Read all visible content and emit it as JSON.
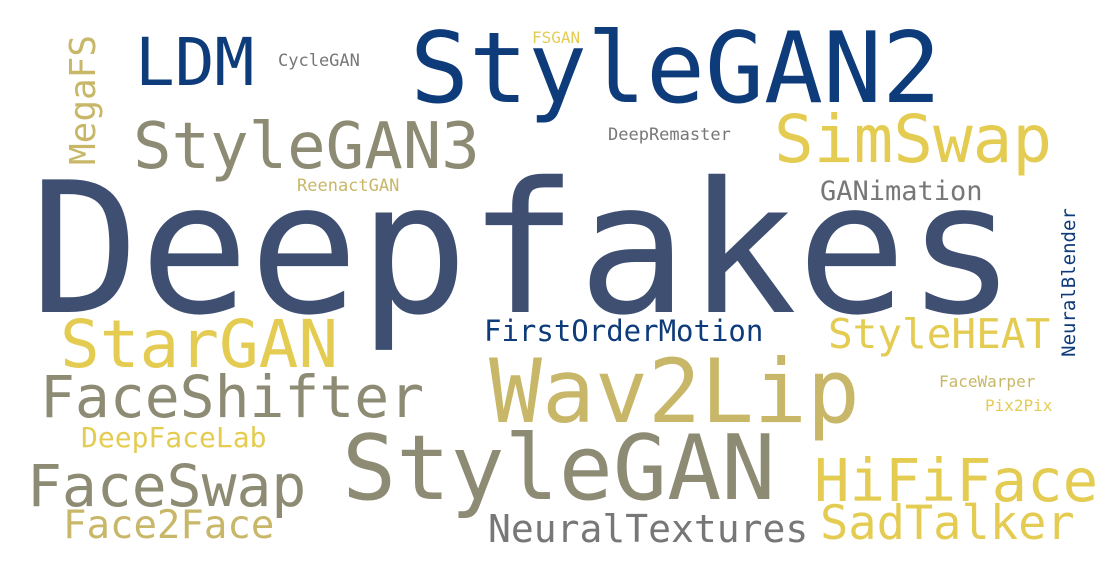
{
  "palette": {
    "navy": "#0e3b7a",
    "slate": "#3f4f72",
    "taupe": "#8e8b74",
    "gold": "#e4cc52",
    "khaki": "#c8b768",
    "gray": "#777777"
  },
  "words": [
    {
      "id": "deepfakes",
      "text": "Deepfakes",
      "color": "slate"
    },
    {
      "id": "stylegan2",
      "text": "StyleGAN2",
      "color": "navy"
    },
    {
      "id": "ldm",
      "text": "LDM",
      "color": "navy"
    },
    {
      "id": "cyclegan",
      "text": "CycleGAN",
      "color": "gray"
    },
    {
      "id": "fsgan",
      "text": "FSGAN",
      "color": "gold"
    },
    {
      "id": "megafs",
      "text": "MegaFS",
      "color": "khaki"
    },
    {
      "id": "stylegan3",
      "text": "StyleGAN3",
      "color": "taupe"
    },
    {
      "id": "simswap",
      "text": "SimSwap",
      "color": "gold"
    },
    {
      "id": "deepremaster",
      "text": "DeepRemaster",
      "color": "gray"
    },
    {
      "id": "reenactgan",
      "text": "ReenactGAN",
      "color": "khaki"
    },
    {
      "id": "ganimation",
      "text": "GANimation",
      "color": "gray"
    },
    {
      "id": "neuralblender",
      "text": "NeuralBlender",
      "color": "navy"
    },
    {
      "id": "firstordermotion",
      "text": "FirstOrderMotion",
      "color": "navy"
    },
    {
      "id": "stylehea",
      "text": "StyleHEAT",
      "color": "gold"
    },
    {
      "id": "stargan",
      "text": "StarGAN",
      "color": "gold"
    },
    {
      "id": "faceshifter",
      "text": "FaceShifter",
      "color": "taupe"
    },
    {
      "id": "wav2lip",
      "text": "Wav2Lip",
      "color": "khaki"
    },
    {
      "id": "facewarper",
      "text": "FaceWarper",
      "color": "khaki"
    },
    {
      "id": "pix2pix",
      "text": "Pix2Pix",
      "color": "gold"
    },
    {
      "id": "deepfacelab",
      "text": "DeepFaceLab",
      "color": "gold"
    },
    {
      "id": "stylegan",
      "text": "StyleGAN",
      "color": "taupe"
    },
    {
      "id": "hififace",
      "text": "HiFiFace",
      "color": "gold"
    },
    {
      "id": "faceswap",
      "text": "FaceSwap",
      "color": "taupe"
    },
    {
      "id": "neuraltextures",
      "text": "NeuralTextures",
      "color": "gray"
    },
    {
      "id": "face2face",
      "text": "Face2Face",
      "color": "khaki"
    },
    {
      "id": "sadtalker",
      "text": "SadTalker",
      "color": "gold"
    }
  ]
}
